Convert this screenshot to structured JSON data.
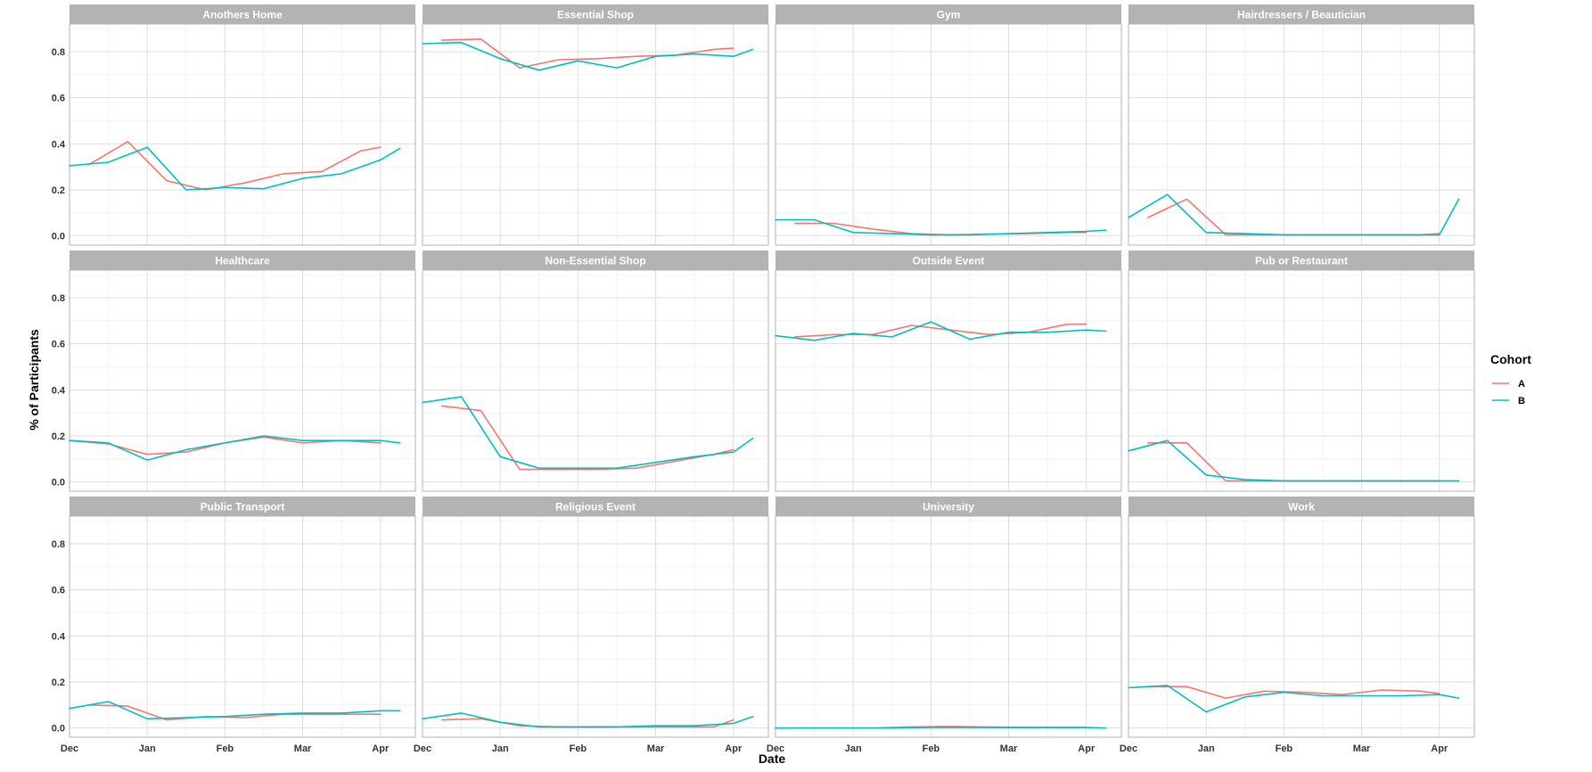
{
  "chart_data": {
    "type": "line",
    "x_label": "Date",
    "y_label": "% of Participants",
    "x_ticks": [
      "Dec",
      "Jan",
      "Feb",
      "Mar",
      "Apr"
    ],
    "x_unit": "months since Dec 1",
    "x_range": [
      0,
      4.45
    ],
    "y_range": [
      -0.04,
      0.92
    ],
    "y_ticks": [
      "0.0",
      "0.2",
      "0.4",
      "0.6",
      "0.8"
    ],
    "legend": {
      "title": "Cohort",
      "position": "right",
      "entries": [
        {
          "label": "A",
          "color": "#F8766D"
        },
        {
          "label": "B",
          "color": "#00BFC4"
        }
      ]
    },
    "panels": [
      {
        "title": "Anothers Home",
        "series": [
          {
            "name": "A",
            "x": [
              0.25,
              0.75,
              1.25,
              1.75,
              2.25,
              2.75,
              3.25,
              3.75
            ],
            "y": [
              0.31,
              0.41,
              0.24,
              0.2,
              0.23,
              0.27,
              0.28,
              0.37
            ]
          },
          {
            "name": "A",
            "x": [
              3.75,
              4.0
            ],
            "y": [
              0.37,
              0.385
            ]
          },
          {
            "name": "B",
            "x": [
              0.0,
              0.5,
              1.0,
              1.5,
              2.0,
              2.5,
              3.0,
              3.5,
              4.0,
              4.25
            ],
            "y": [
              0.305,
              0.32,
              0.385,
              0.2,
              0.21,
              0.205,
              0.25,
              0.27,
              0.33,
              0.38
            ]
          }
        ]
      },
      {
        "title": "Essential Shop",
        "series": [
          {
            "name": "A",
            "x": [
              0.25,
              0.75,
              1.25,
              1.75,
              2.25,
              2.75,
              3.25,
              3.75,
              4.0
            ],
            "y": [
              0.85,
              0.855,
              0.73,
              0.765,
              0.77,
              0.78,
              0.785,
              0.81,
              0.815
            ]
          },
          {
            "name": "B",
            "x": [
              0.0,
              0.5,
              1.0,
              1.5,
              2.0,
              2.5,
              3.0,
              3.5,
              4.0,
              4.25
            ],
            "y": [
              0.835,
              0.84,
              0.77,
              0.72,
              0.76,
              0.73,
              0.78,
              0.79,
              0.78,
              0.81
            ]
          }
        ]
      },
      {
        "title": "Gym",
        "series": [
          {
            "name": "A",
            "x": [
              0.25,
              0.75,
              1.25,
              1.75,
              2.25,
              2.75,
              3.25,
              3.75,
              4.0
            ],
            "y": [
              0.055,
              0.055,
              0.03,
              0.01,
              0.005,
              0.008,
              0.01,
              0.015,
              0.015
            ]
          },
          {
            "name": "B",
            "x": [
              0.0,
              0.5,
              1.0,
              1.5,
              2.0,
              2.5,
              3.0,
              3.5,
              4.0,
              4.25
            ],
            "y": [
              0.07,
              0.07,
              0.015,
              0.01,
              0.005,
              0.005,
              0.01,
              0.015,
              0.02,
              0.025
            ]
          }
        ]
      },
      {
        "title": "Hairdressers / Beautician",
        "series": [
          {
            "name": "A",
            "x": [
              0.25,
              0.75,
              1.25,
              1.75,
              2.25,
              2.75,
              3.25,
              3.75,
              4.0
            ],
            "y": [
              0.08,
              0.16,
              0.005,
              0.005,
              0.005,
              0.005,
              0.005,
              0.005,
              0.01
            ]
          },
          {
            "name": "B",
            "x": [
              0.0,
              0.5,
              1.0,
              1.5,
              2.0,
              2.5,
              3.0,
              3.5,
              4.0,
              4.25
            ],
            "y": [
              0.08,
              0.18,
              0.015,
              0.01,
              0.005,
              0.005,
              0.005,
              0.005,
              0.005,
              0.16
            ]
          }
        ]
      },
      {
        "title": "Healthcare",
        "series": [
          {
            "name": "A",
            "x": [
              0.0,
              0.5,
              1.0,
              1.5,
              2.0,
              2.5,
              3.0,
              3.5,
              4.0
            ],
            "y": [
              0.18,
              0.165,
              0.12,
              0.13,
              0.17,
              0.195,
              0.17,
              0.18,
              0.17
            ]
          },
          {
            "name": "B",
            "x": [
              0.0,
              0.5,
              1.0,
              1.5,
              2.0,
              2.5,
              3.0,
              3.5,
              4.0,
              4.25
            ],
            "y": [
              0.18,
              0.17,
              0.095,
              0.14,
              0.17,
              0.2,
              0.18,
              0.18,
              0.18,
              0.17
            ]
          }
        ]
      },
      {
        "title": "Non-Essential Shop",
        "series": [
          {
            "name": "A",
            "x": [
              0.25,
              0.75,
              1.25,
              1.75,
              2.25,
              2.75,
              3.25,
              3.75,
              4.0
            ],
            "y": [
              0.33,
              0.31,
              0.055,
              0.055,
              0.055,
              0.06,
              0.09,
              0.12,
              0.14
            ]
          },
          {
            "name": "B",
            "x": [
              0.0,
              0.5,
              1.0,
              1.5,
              2.0,
              2.5,
              3.0,
              3.5,
              4.0,
              4.25
            ],
            "y": [
              0.345,
              0.37,
              0.11,
              0.06,
              0.06,
              0.06,
              0.085,
              0.11,
              0.13,
              0.19
            ]
          }
        ]
      },
      {
        "title": "Outside Event",
        "series": [
          {
            "name": "A",
            "x": [
              0.25,
              0.75,
              1.25,
              1.75,
              2.25,
              2.75,
              3.25,
              3.75,
              4.0
            ],
            "y": [
              0.63,
              0.64,
              0.64,
              0.68,
              0.66,
              0.64,
              0.65,
              0.685,
              0.685
            ]
          },
          {
            "name": "B",
            "x": [
              0.0,
              0.5,
              1.0,
              1.5,
              2.0,
              2.5,
              3.0,
              3.5,
              4.0,
              4.25
            ],
            "y": [
              0.635,
              0.615,
              0.645,
              0.63,
              0.695,
              0.62,
              0.65,
              0.65,
              0.66,
              0.655
            ]
          }
        ]
      },
      {
        "title": "Pub or Restaurant",
        "series": [
          {
            "name": "A",
            "x": [
              0.25,
              0.75,
              1.25,
              1.75,
              2.25,
              2.75,
              3.25,
              3.75,
              4.0
            ],
            "y": [
              0.17,
              0.17,
              0.005,
              0.005,
              0.005,
              0.005,
              0.005,
              0.005,
              0.005
            ]
          },
          {
            "name": "B",
            "x": [
              0.0,
              0.5,
              1.0,
              1.5,
              2.0,
              2.5,
              3.0,
              3.5,
              4.0,
              4.25
            ],
            "y": [
              0.135,
              0.18,
              0.03,
              0.01,
              0.005,
              0.005,
              0.005,
              0.005,
              0.005,
              0.005
            ]
          }
        ]
      },
      {
        "title": "Public Transport",
        "series": [
          {
            "name": "A",
            "x": [
              0.25,
              0.75,
              1.25,
              1.75,
              2.25,
              2.75,
              3.25,
              3.75,
              4.0
            ],
            "y": [
              0.1,
              0.095,
              0.035,
              0.05,
              0.045,
              0.06,
              0.06,
              0.06,
              0.06
            ]
          },
          {
            "name": "B",
            "x": [
              0.0,
              0.5,
              1.0,
              1.5,
              2.0,
              2.5,
              3.0,
              3.5,
              4.0,
              4.25
            ],
            "y": [
              0.085,
              0.115,
              0.04,
              0.045,
              0.05,
              0.06,
              0.065,
              0.065,
              0.075,
              0.075
            ]
          }
        ]
      },
      {
        "title": "Religious Event",
        "series": [
          {
            "name": "A",
            "x": [
              0.25,
              0.75,
              1.25,
              1.75,
              2.25,
              2.75,
              3.25,
              3.75,
              4.0
            ],
            "y": [
              0.035,
              0.04,
              0.01,
              0.005,
              0.005,
              0.005,
              0.005,
              0.005,
              0.035
            ]
          },
          {
            "name": "B",
            "x": [
              0.0,
              0.5,
              1.0,
              1.5,
              2.0,
              2.5,
              3.0,
              3.5,
              4.0,
              4.25
            ],
            "y": [
              0.04,
              0.065,
              0.025,
              0.005,
              0.005,
              0.005,
              0.01,
              0.01,
              0.02,
              0.05
            ]
          }
        ]
      },
      {
        "title": "University",
        "series": [
          {
            "name": "A",
            "x": [
              0.25,
              0.75,
              1.25,
              1.75,
              2.25,
              2.75,
              3.25,
              3.75,
              4.0
            ],
            "y": [
              0.0,
              0.0,
              0.0,
              0.005,
              0.007,
              0.004,
              0.003,
              0.003,
              0.003
            ]
          },
          {
            "name": "B",
            "x": [
              0.0,
              0.5,
              1.0,
              1.5,
              2.0,
              2.5,
              3.0,
              3.5,
              4.0,
              4.25
            ],
            "y": [
              0.0,
              0.0,
              0.0,
              0.0,
              0.003,
              0.003,
              0.002,
              0.002,
              0.002,
              0.0
            ]
          }
        ]
      },
      {
        "title": "Work",
        "series": [
          {
            "name": "A",
            "x": [
              0.25,
              0.75,
              1.25,
              1.75,
              2.25,
              2.75,
              3.25,
              3.75,
              4.0
            ],
            "y": [
              0.18,
              0.18,
              0.13,
              0.16,
              0.155,
              0.145,
              0.165,
              0.16,
              0.15
            ]
          },
          {
            "name": "B",
            "x": [
              0.0,
              0.5,
              1.0,
              1.5,
              2.0,
              2.5,
              3.0,
              3.5,
              4.0,
              4.25
            ],
            "y": [
              0.175,
              0.185,
              0.07,
              0.135,
              0.155,
              0.14,
              0.14,
              0.14,
              0.145,
              0.13
            ]
          }
        ]
      }
    ]
  }
}
